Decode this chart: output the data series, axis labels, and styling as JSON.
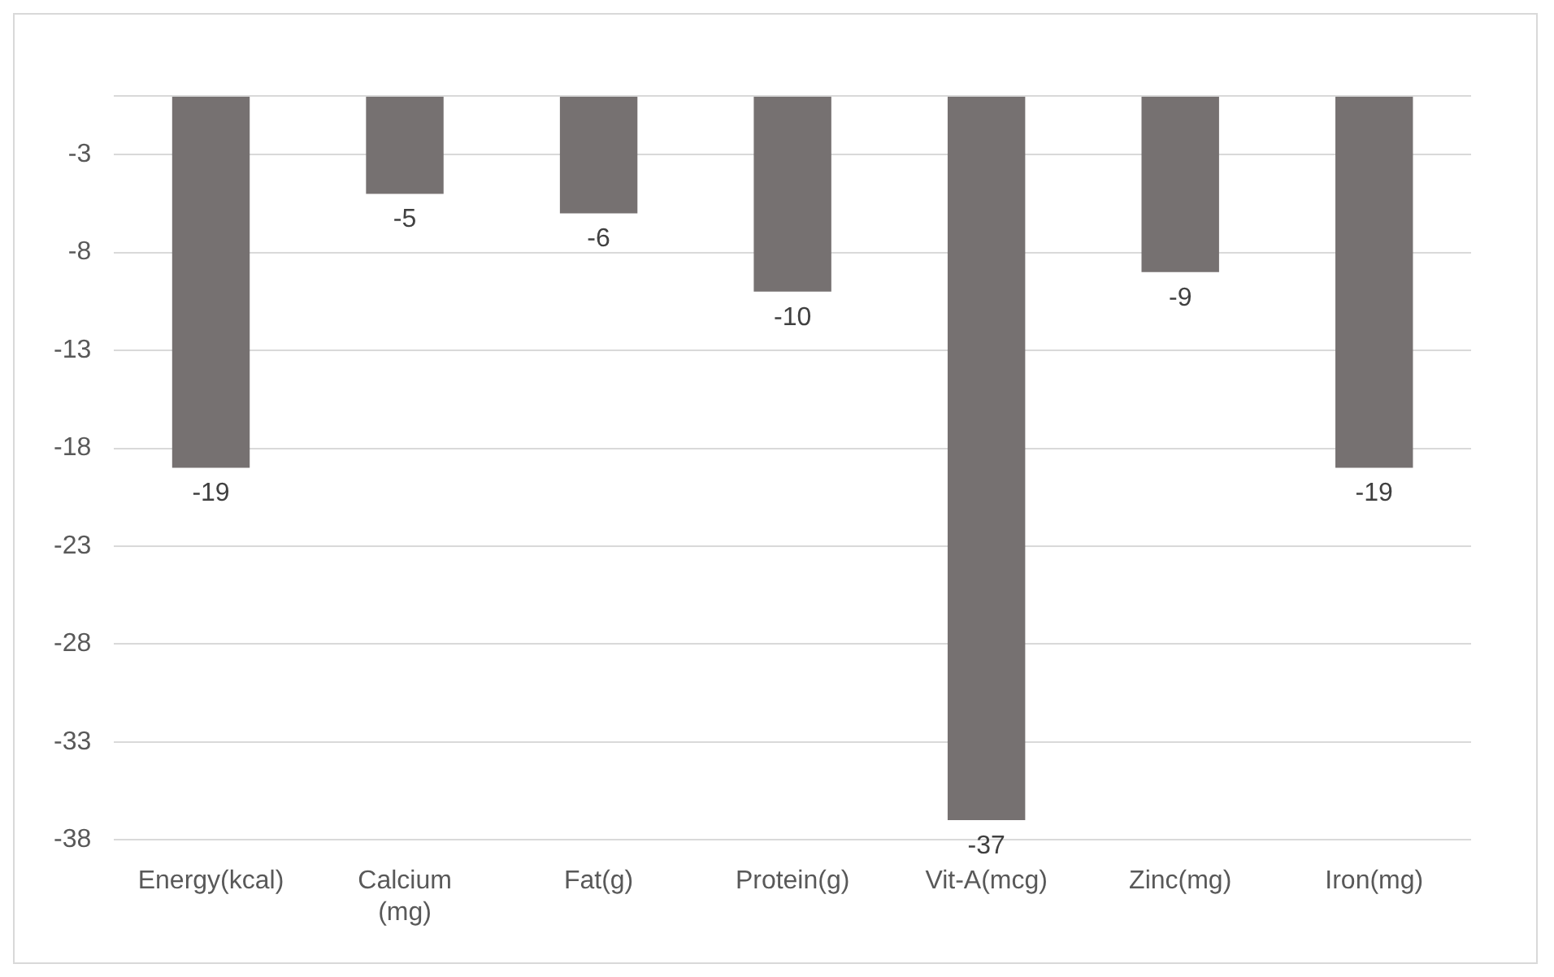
{
  "chart_data": {
    "type": "bar",
    "categories": [
      "Energy(kcal)",
      "Calcium (mg)",
      "Fat(g)",
      "Protein(g)",
      "Vit-A(mcg)",
      "Zinc(mg)",
      "Iron(mg)"
    ],
    "values": [
      -19,
      -5,
      -6,
      -10,
      -37,
      -9,
      -19
    ],
    "color": "#767171",
    "ylim": [
      -38,
      0
    ],
    "yticks": [
      -38,
      -33,
      -28,
      -23,
      -18,
      -13,
      -8,
      -3,
      {
        "value": 0,
        "label": null
      }
    ],
    "grid": "y",
    "legend": false,
    "data_labels": true
  }
}
